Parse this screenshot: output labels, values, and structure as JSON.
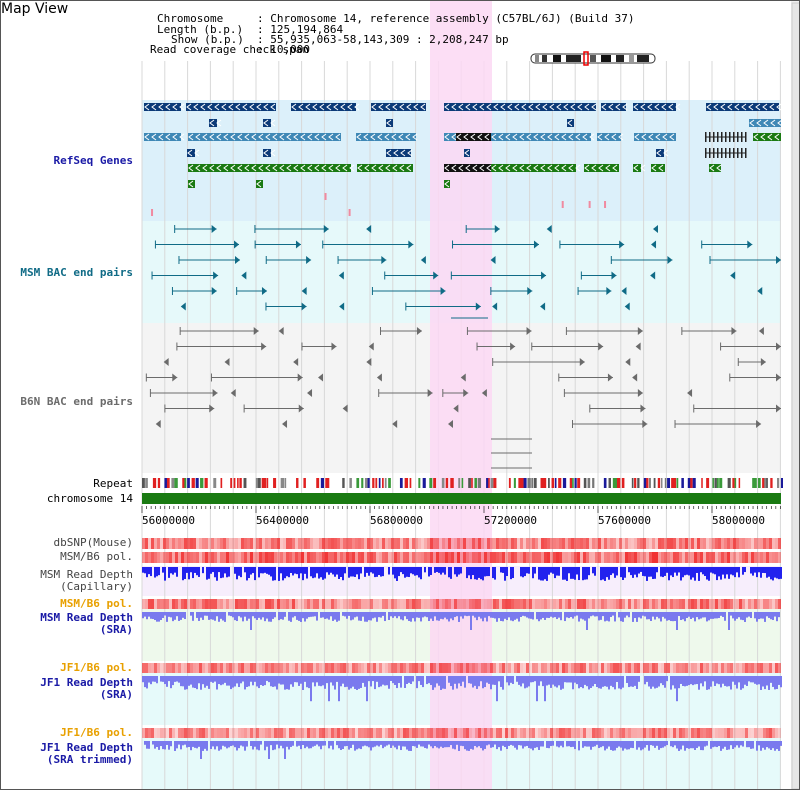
{
  "header": {
    "title": "Map View",
    "chromosome_label": "Chromosome",
    "chromosome_value": ": Chromosome 14, reference assembly (C57BL/6J) (Build 37)",
    "length_label": "Length (b.p.)",
    "length_value": ": 125,194,864",
    "show_label": "Show (b.p.)",
    "show_value": ": 55,935,063-58,143,309 : 2,208,247 bp",
    "coverage_label": "Read coverage check span",
    "coverage_value": ": 10,000"
  },
  "tracks": {
    "refseq_label": "RefSeq Genes",
    "msm_bac_label": "MSM BAC end pairs",
    "b6n_bac_label": "B6N BAC end pairs",
    "repeat_label": "Repeat",
    "chromosome_label": "chromosome 14",
    "dbsnp_label": "dbSNP(Mouse)",
    "msm_pol_1_label": "MSM/B6 pol.",
    "msm_depth_cap_label": "MSM Read Depth\n(Capillary)",
    "msm_pol_2_label": "MSM/B6 pol.",
    "msm_depth_sra_label": "MSM Read Depth\n(SRA)",
    "jf1_pol_1_label": "JF1/B6 pol.",
    "jf1_depth_sra_label": "JF1 Read Depth\n(SRA)",
    "jf1_pol_2_label": "JF1/B6 pol.",
    "jf1_depth_trim_label": "JF1 Read Depth\n(SRA trimmed)"
  },
  "ruler": {
    "ticks": [
      "56000000",
      "56400000",
      "56800000",
      "57200000",
      "57600000",
      "58000000"
    ]
  },
  "colors": {
    "highlight": "#fbd8f3",
    "refseq_bg": "#dcf0fa",
    "msm_bac_bg": "#e6f9fa",
    "b6n_bac_bg": "#f4f4f4",
    "refseq_dark": "#0b3a78",
    "refseq_mid": "#3f88b6",
    "refseq_green": "#1a7a12",
    "msm_bac": "#106b86",
    "b6n_bac": "#6b6b6b",
    "depth_blue": "#2222ee",
    "depth_light": "#7a7aee",
    "pol_red": "#f24040",
    "chromosome_green": "#1a7a12"
  }
}
